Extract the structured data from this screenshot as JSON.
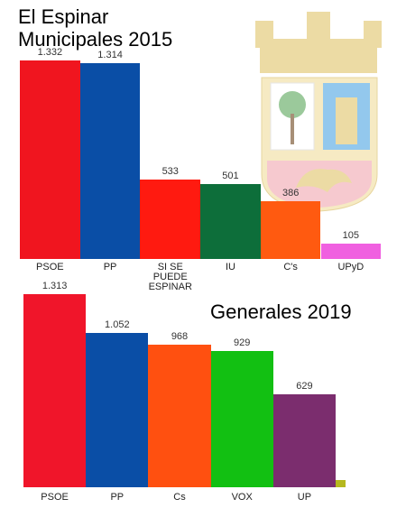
{
  "chart_data": [
    {
      "type": "bar",
      "title": "El Espinar",
      "subtitle": "Municipales 2015",
      "categories": [
        "PSOE",
        "PP",
        "SI SE PUEDE ESPINAR",
        "IU",
        "C's",
        "UPyD"
      ],
      "values": [
        1332,
        1314,
        533,
        501,
        386,
        105
      ],
      "value_labels": [
        "1.332",
        "1.314",
        "533",
        "501",
        "386",
        "105"
      ],
      "colors": [
        "#f0151f",
        "#0a4ea6",
        "#ff1a10",
        "#0d6e3a",
        "#ff5a10",
        "#f060e0"
      ]
    },
    {
      "type": "bar",
      "title": "Generales 2019",
      "categories": [
        "PSOE",
        "PP",
        "Cs",
        "VOX",
        "UP",
        null
      ],
      "values": [
        1313,
        1052,
        968,
        929,
        629,
        50
      ],
      "value_labels": [
        "1.313",
        "1.052",
        "968",
        "929",
        "629",
        null
      ],
      "colors": [
        "#f0152a",
        "#0a4ea6",
        "#ff5010",
        "#12c012",
        "#7b2d6e",
        "#b5b81e"
      ]
    }
  ]
}
